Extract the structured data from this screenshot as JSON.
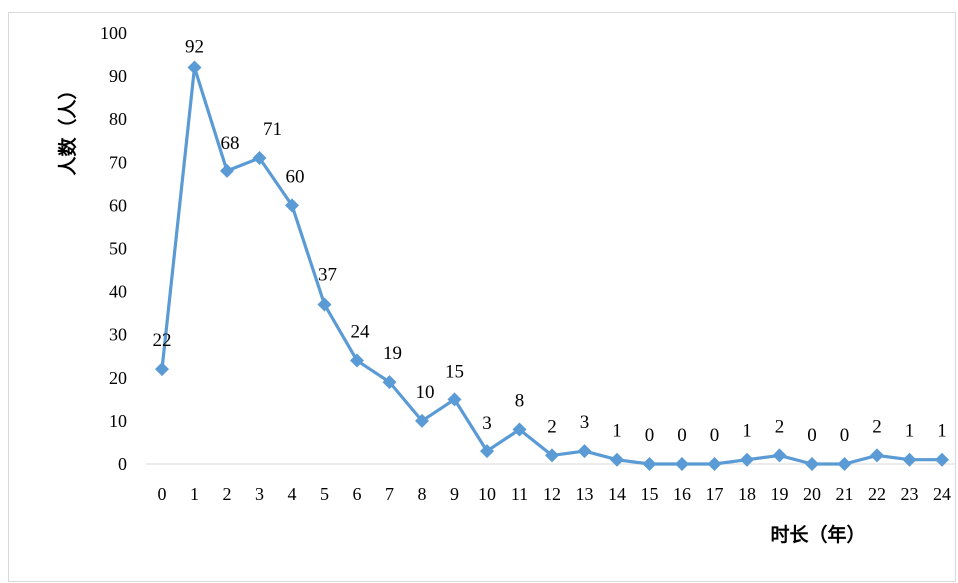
{
  "chart_data": {
    "type": "line",
    "xlabel": "时长（年）",
    "ylabel": "人数（人）",
    "categories": [
      "0",
      "1",
      "2",
      "3",
      "4",
      "5",
      "6",
      "7",
      "8",
      "9",
      "10",
      "11",
      "12",
      "13",
      "14",
      "15",
      "16",
      "17",
      "18",
      "19",
      "20",
      "21",
      "22",
      "23",
      "24"
    ],
    "series": [
      {
        "values": [
          22,
          92,
          68,
          71,
          60,
          37,
          24,
          19,
          10,
          15,
          3,
          8,
          2,
          3,
          1,
          0,
          0,
          0,
          1,
          2,
          0,
          0,
          2,
          1,
          1
        ],
        "color": "#5b9bd5"
      }
    ],
    "ylim": [
      0,
      100
    ],
    "yticks": [
      0,
      10,
      20,
      30,
      40,
      50,
      60,
      70,
      80,
      90,
      100
    ],
    "grid": false,
    "legend": "none",
    "marker": "diamond",
    "data_labels": true
  }
}
